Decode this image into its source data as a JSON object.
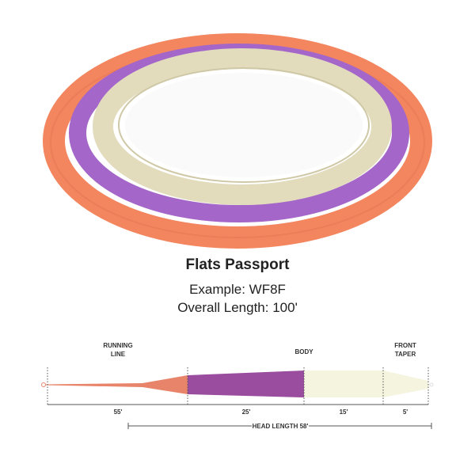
{
  "product": {
    "name": "Flats Passport",
    "example": "Example: WF8F",
    "overall_length": "Overall Length: 100'"
  },
  "diagram": {
    "sections": [
      {
        "label": [
          "RUNNING",
          "LINE"
        ],
        "length": "55'"
      },
      {
        "label": [
          "BODY"
        ],
        "length": "25'"
      },
      {
        "label": [],
        "length": "15'"
      },
      {
        "label": [
          "FRONT",
          "TAPER"
        ],
        "length": "5'"
      }
    ],
    "head_length": "HEAD LENGTH 58'"
  }
}
